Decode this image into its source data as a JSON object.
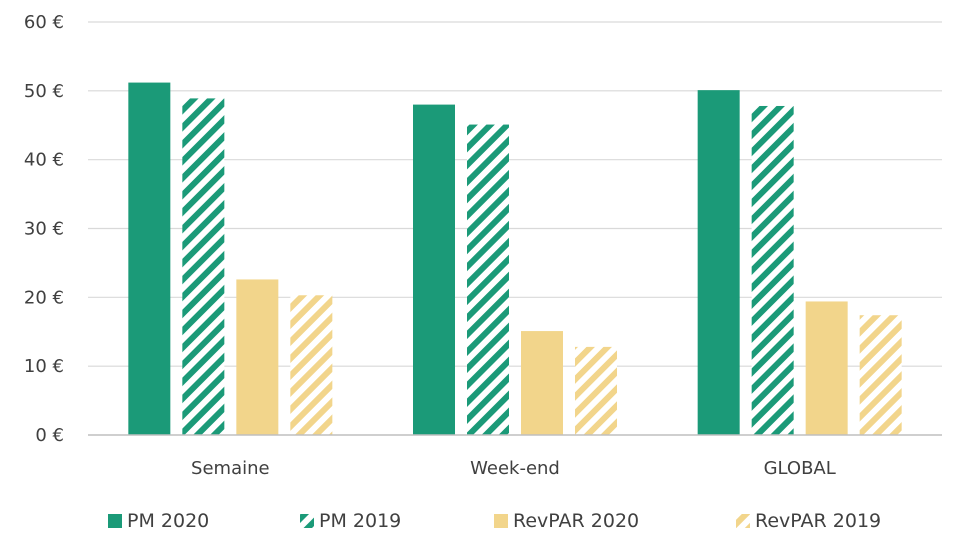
{
  "chart_data": {
    "type": "bar",
    "title": "",
    "xlabel": "",
    "ylabel": "",
    "categories": [
      "Semaine",
      "Week-end",
      "GLOBAL"
    ],
    "ylim": [
      0,
      60
    ],
    "yticks": [
      0,
      10,
      20,
      30,
      40,
      50,
      60
    ],
    "ytick_labels": [
      "0 €",
      "10 €",
      "20 €",
      "30 €",
      "40 €",
      "50 €",
      "60 €"
    ],
    "grid": true,
    "legend_position": "bottom",
    "series": [
      {
        "name": "PM 2020",
        "values": [
          51.2,
          48.0,
          50.1
        ],
        "color": "#1b9a78",
        "pattern": "solid"
      },
      {
        "name": "PM 2019",
        "values": [
          48.9,
          45.1,
          47.8
        ],
        "color": "#1b9a78",
        "pattern": "hatched"
      },
      {
        "name": "RevPAR 2020",
        "values": [
          22.6,
          15.1,
          19.4
        ],
        "color": "#f2d58b",
        "pattern": "solid"
      },
      {
        "name": "RevPAR 2019",
        "values": [
          20.3,
          12.8,
          17.4
        ],
        "color": "#f2d58b",
        "pattern": "hatched"
      }
    ]
  }
}
